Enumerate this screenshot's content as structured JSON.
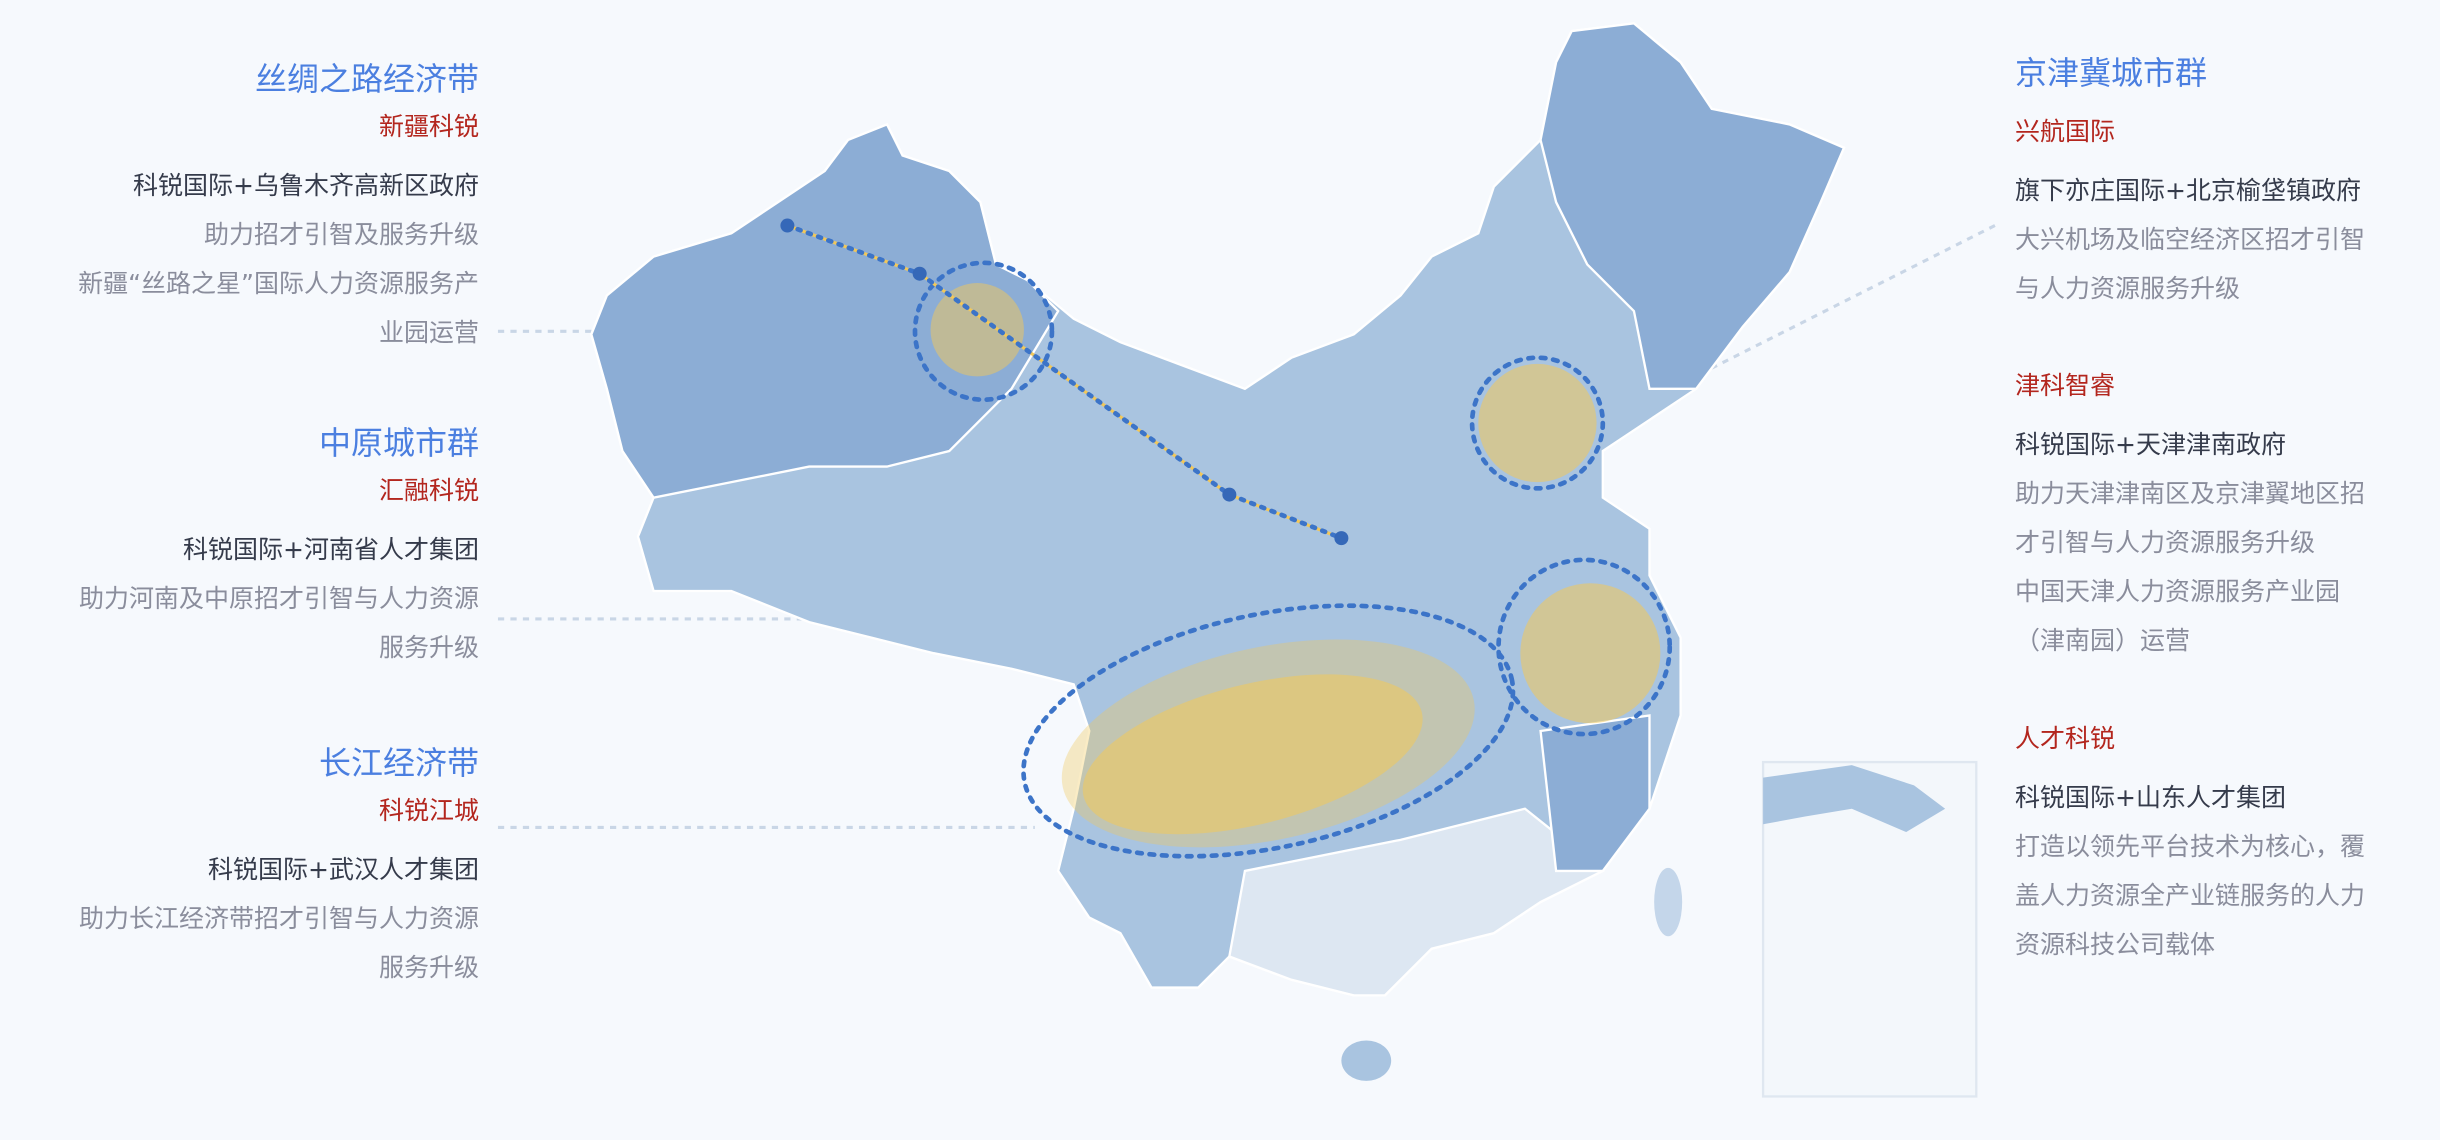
{
  "colors": {
    "title": "#4b7fe0",
    "company": "#b3261e",
    "partner": "#353b4b",
    "description": "#8a8d9c",
    "map_fill": "#a9c4e0",
    "map_dark": "#8cadd5",
    "highlight": "#f2c85a",
    "dotted_ring": "#3c74c8"
  },
  "left": [
    {
      "region": "丝绸之路经济带",
      "company": "新疆科锐",
      "partner": "科锐国际+乌鲁木齐高新区政府",
      "desc": [
        "助力招才引智及服务升级",
        "新疆“丝路之星”国际人力资源服务产",
        "业园运营"
      ]
    },
    {
      "region": "中原城市群",
      "company": "汇融科锐",
      "partner": "科锐国际+河南省人才集团",
      "desc": [
        "助力河南及中原招才引智与人力资源",
        "服务升级"
      ]
    },
    {
      "region": "长江经济带",
      "company": "科锐江城",
      "partner": "科锐国际+武汉人才集团",
      "desc": [
        "助力长江经济带招才引智与人力资源",
        "服务升级"
      ]
    }
  ],
  "right": {
    "region": "京津冀城市群",
    "items": [
      {
        "company": "兴航国际",
        "partner": "旗下亦庄国际+北京榆垡镇政府",
        "desc": [
          "大兴机场及临空经济区招才引智",
          "与人力资源服务升级"
        ]
      },
      {
        "company": "津科智睿",
        "partner": "科锐国际+天津津南政府",
        "desc": [
          "助力天津津南区及京津翼地区招",
          "才引智与人力资源服务升级",
          "中国天津人力资源服务产业园",
          "（津南园）运营"
        ]
      },
      {
        "company": "人才科锐",
        "partner": "科锐国际+山东人才集团",
        "desc": [
          "打造以领先平台技术为核心，覆",
          "盖人力资源全产业链服务的人力",
          "资源科技公司载体"
        ]
      }
    ]
  }
}
